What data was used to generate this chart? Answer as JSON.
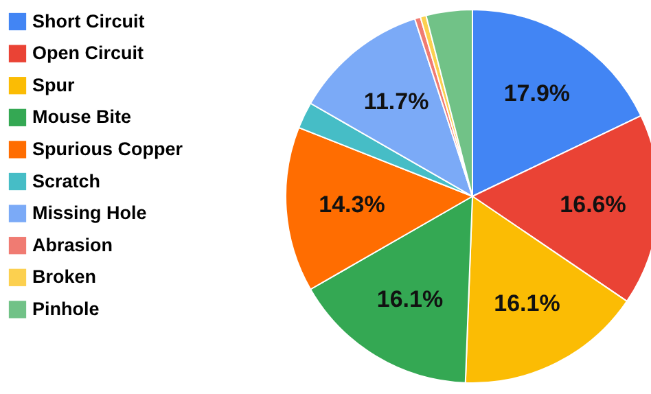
{
  "chart_data": {
    "type": "pie",
    "categories": [
      "Short Circuit",
      "Open Circuit",
      "Spur",
      "Mouse Bite",
      "Spurious Copper",
      "Scratch",
      "Missing Hole",
      "Abrasion",
      "Broken",
      "Pinhole"
    ],
    "values": [
      17.9,
      16.6,
      16.1,
      16.1,
      14.3,
      2.3,
      11.7,
      0.5,
      0.5,
      4.0
    ],
    "value_labels": [
      "17.9%",
      "16.6%",
      "16.1%",
      "16.1%",
      "14.3%",
      null,
      "11.7%",
      null,
      null,
      null
    ],
    "colors": [
      "#4285f4",
      "#ea4335",
      "#fbbc04",
      "#34a853",
      "#ff6d01",
      "#46bdc6",
      "#7baaf7",
      "#f07b72",
      "#fcd04f",
      "#71c287"
    ],
    "legend": "left"
  }
}
